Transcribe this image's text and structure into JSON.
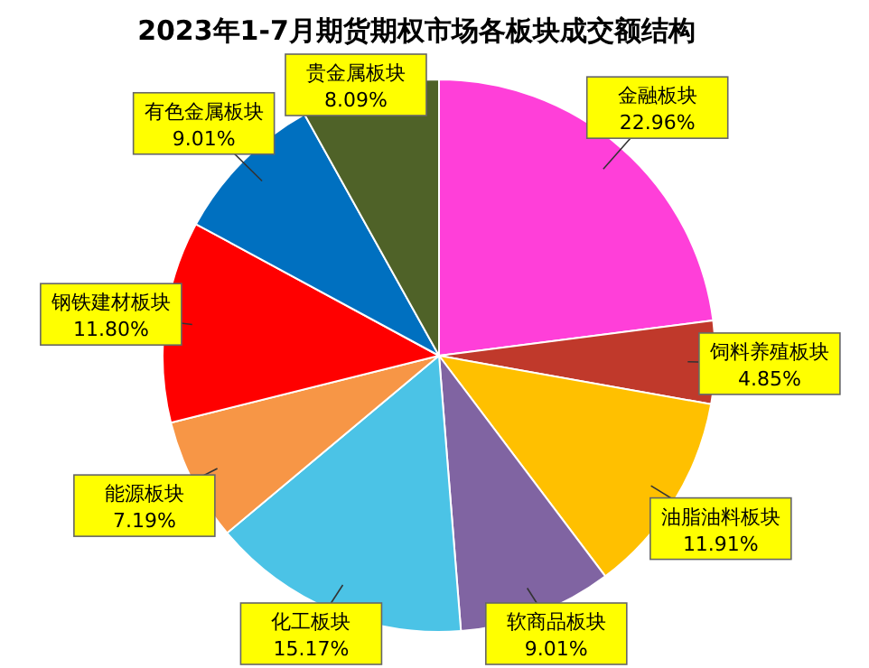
{
  "chart_data": {
    "type": "pie",
    "title": "2023年1-7月期货期权市场各板块成交额结构",
    "categories": [
      "金融板块",
      "饲料养殖板块",
      "油脂油料板块",
      "软商品板块",
      "化工板块",
      "能源板块",
      "钢铁建材板块",
      "有色金属板块",
      "贵金属板块"
    ],
    "values": [
      22.96,
      4.85,
      11.91,
      9.01,
      15.17,
      7.19,
      11.8,
      9.01,
      8.09
    ],
    "value_labels": [
      "22.96%",
      "4.85%",
      "11.91%",
      "9.01%",
      "15.17%",
      "7.19%",
      "11.80%",
      "9.01%",
      "8.09%"
    ],
    "colors": [
      "#ff3fd9",
      "#c0392b",
      "#ffc000",
      "#8064a2",
      "#4bc3e6",
      "#f79646",
      "#ff0000",
      "#0070c0",
      "#4f6228"
    ]
  }
}
